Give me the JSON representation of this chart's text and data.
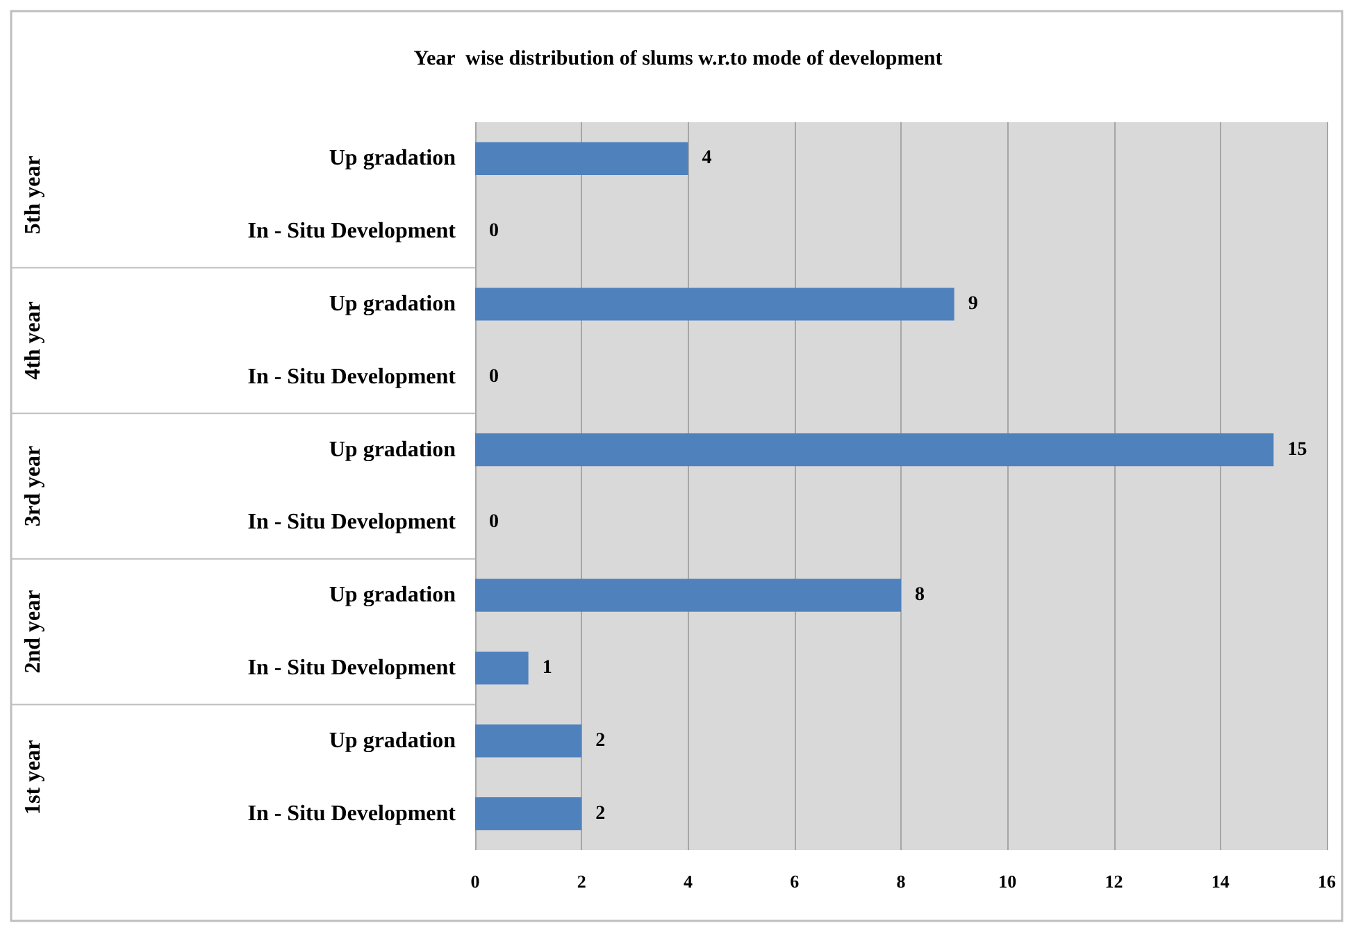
{
  "chart_data": {
    "type": "bar",
    "orientation": "horizontal",
    "title": "Year  wise distribution of slums w.r.to mode of development",
    "categories": [
      "Up gradation",
      "In - Situ Development",
      "Up gradation",
      "In - Situ Development",
      "Up gradation",
      "In - Situ Development",
      "Up gradation",
      "In - Situ Development",
      "Up gradation",
      "In - Situ Development"
    ],
    "values": [
      4,
      0,
      9,
      0,
      15,
      0,
      8,
      1,
      2,
      2
    ],
    "color": "#4f81bd",
    "xlim": [
      0,
      16
    ],
    "xticks": [
      0,
      2,
      4,
      6,
      8,
      10,
      12,
      14,
      16
    ],
    "grid": "x",
    "data_labels": true,
    "annotations": [
      "5th year",
      "4th year",
      "3rd year",
      "2nd year",
      "1st year"
    ]
  }
}
